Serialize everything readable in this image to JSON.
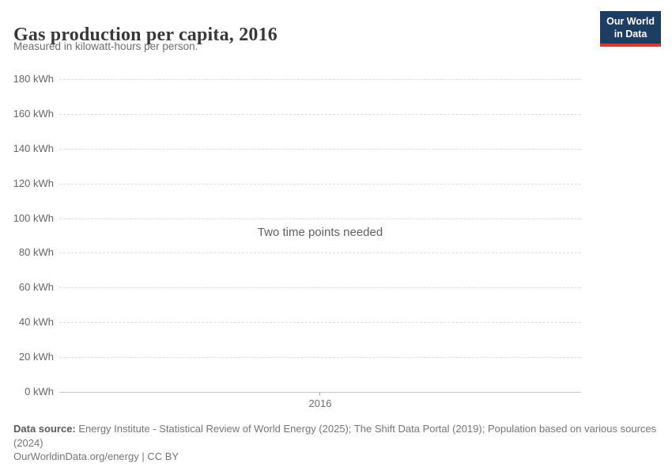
{
  "header": {
    "title": "Gas production per capita, 2016",
    "subtitle": "Measured in kilowatt-hours per person."
  },
  "logo": {
    "line1": "Our World",
    "line2": "in Data",
    "background_color": "#1d3d63",
    "accent_color": "#cd3d34"
  },
  "chart_data": {
    "type": "line",
    "title": "Gas production per capita, 2016",
    "unit": "kWh",
    "ylim": [
      0,
      180
    ],
    "ytick_step": 20,
    "yticks": [
      {
        "value": 0,
        "label": "0 kWh"
      },
      {
        "value": 20,
        "label": "20 kWh"
      },
      {
        "value": 40,
        "label": "40 kWh"
      },
      {
        "value": 60,
        "label": "60 kWh"
      },
      {
        "value": 80,
        "label": "80 kWh"
      },
      {
        "value": 100,
        "label": "100 kWh"
      },
      {
        "value": 120,
        "label": "120 kWh"
      },
      {
        "value": 140,
        "label": "140 kWh"
      },
      {
        "value": 160,
        "label": "160 kWh"
      },
      {
        "value": 180,
        "label": "180 kWh"
      }
    ],
    "xticks": [
      {
        "value": 2016,
        "label": "2016"
      }
    ],
    "series": [],
    "empty_state_message": "Two time points needed",
    "grid": true,
    "legend": "none"
  },
  "footer": {
    "source_label": "Data source:",
    "source_text": " Energy Institute - Statistical Review of World Energy (2025); The Shift Data Portal (2019); Population based on various sources (2024)",
    "url": "OurWorldinData.org/energy",
    "separator": " | ",
    "license": "CC BY"
  },
  "colors": {
    "title": "#383838",
    "subtitle": "#6d6d6d",
    "axis_label": "#656565",
    "gridline": "#dcdcdc",
    "axis_line": "#c5c5c5",
    "message": "#5f5f5f",
    "footer": "#757575"
  }
}
